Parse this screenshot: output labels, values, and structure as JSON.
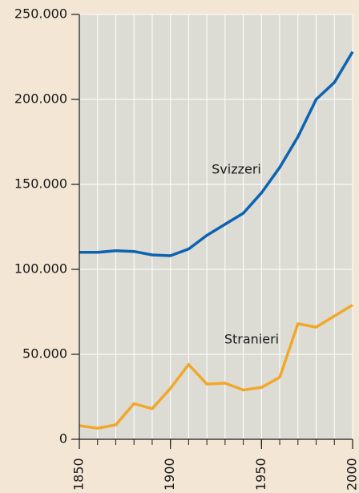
{
  "chart_data": {
    "type": "line",
    "x": [
      1850,
      1860,
      1870,
      1880,
      1890,
      1900,
      1910,
      1920,
      1930,
      1940,
      1950,
      1960,
      1970,
      1980,
      1990,
      2000
    ],
    "series": [
      {
        "name": "Svizzeri",
        "color": "#0d63b1",
        "values": [
          110000,
          110000,
          111000,
          110500,
          108500,
          108000,
          112000,
          120000,
          126500,
          133000,
          145000,
          160000,
          178000,
          200000,
          210000,
          228000
        ]
      },
      {
        "name": "Stranieri",
        "color": "#f2a72a",
        "values": [
          8000,
          6500,
          8500,
          21000,
          18000,
          30000,
          44000,
          32500,
          33000,
          29000,
          30500,
          36500,
          68000,
          66000,
          72500,
          79000
        ]
      }
    ],
    "xlim": [
      1850,
      2000
    ],
    "xticks": [
      1850,
      1900,
      1950,
      2000
    ],
    "ylim": [
      0,
      250000
    ],
    "yticks": [
      0,
      {
        "value": 50000,
        "label": "50.000"
      },
      {
        "value": 100000,
        "label": "100.000"
      },
      {
        "value": 150000,
        "label": "150.000"
      },
      {
        "value": 200000,
        "label": "200.000"
      },
      {
        "value": 250000,
        "label": "250.000"
      }
    ],
    "grid": true
  }
}
